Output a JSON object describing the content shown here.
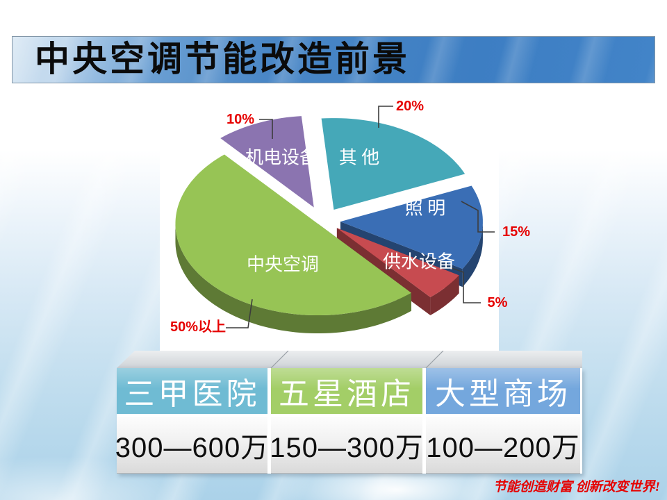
{
  "slide": {
    "title": "中央空调节能改造前景",
    "footer": "节能创造财富 创新改变世界!"
  },
  "chart_data": {
    "type": "pie",
    "style": "3d-exploded",
    "title": "",
    "legend_position": "none",
    "slices": [
      {
        "label": "中央空调",
        "value": 50,
        "value_label": "50%以上",
        "color": "#97c455"
      },
      {
        "label": "其 他",
        "value": 20,
        "value_label": "20%",
        "color": "#45a8b8"
      },
      {
        "label": "照 明",
        "value": 15,
        "value_label": "15%",
        "color": "#3a6eb5"
      },
      {
        "label": "机电设备",
        "value": 10,
        "value_label": "10%",
        "color": "#8b74b0"
      },
      {
        "label": "供水设备",
        "value": 5,
        "value_label": "5%",
        "color": "#c74b50"
      }
    ],
    "callout_color": "#e60100"
  },
  "table": {
    "columns": [
      {
        "header": "三甲医院",
        "value": "300—600万",
        "header_color": "#6fbbd3"
      },
      {
        "header": "五星酒店",
        "value": "150—300万",
        "header_color": "#a3ce67"
      },
      {
        "header": "大型商场",
        "value": "100—200万",
        "header_color": "#74a7dd"
      }
    ]
  }
}
